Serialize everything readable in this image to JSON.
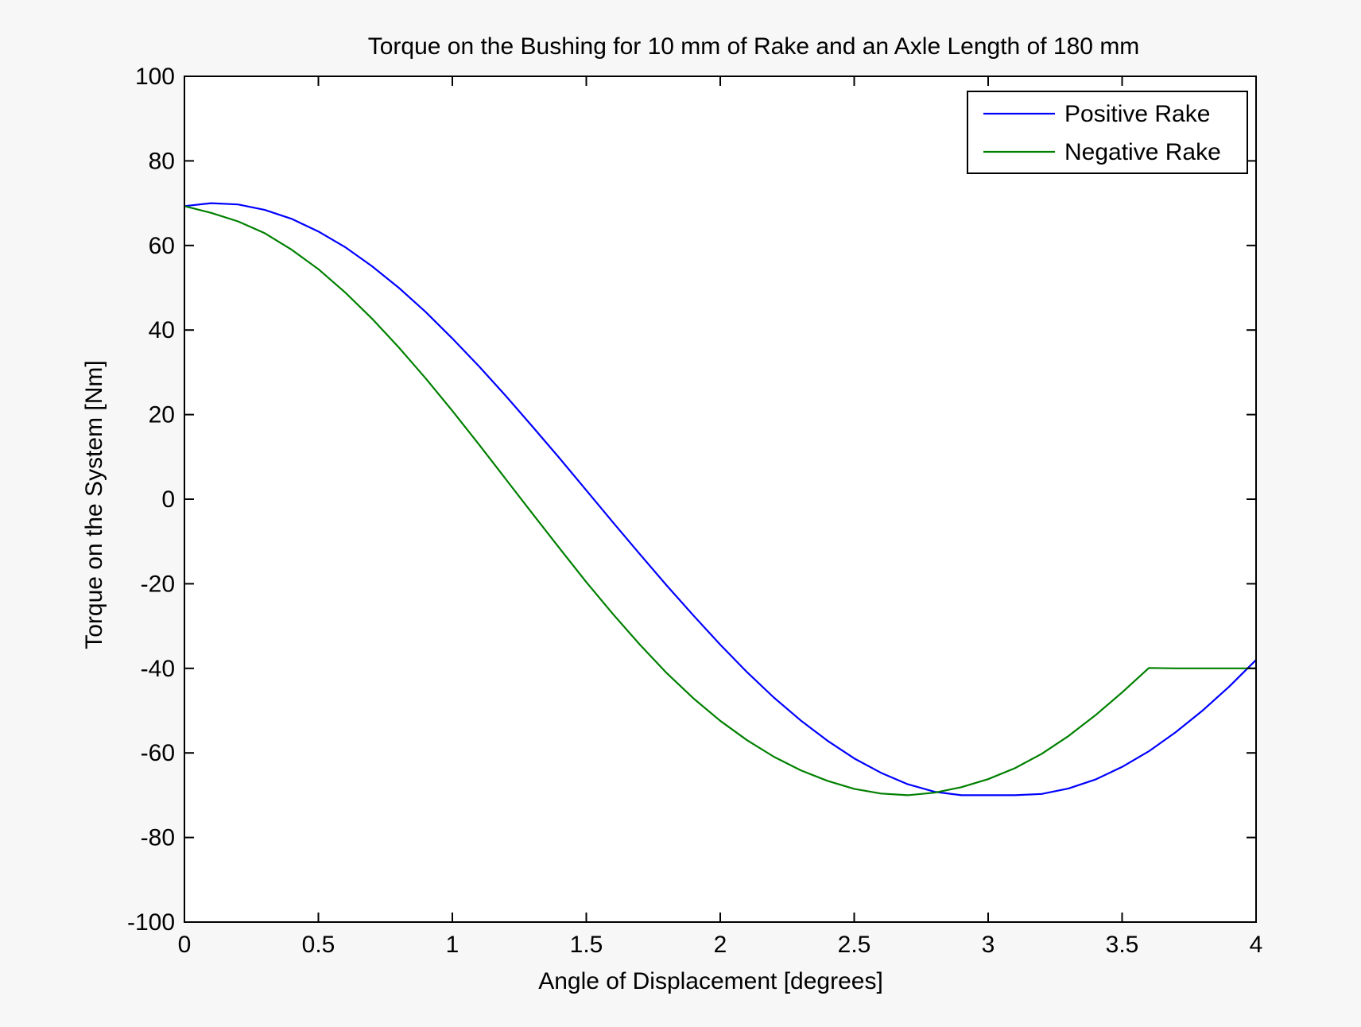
{
  "chart_data": {
    "type": "line",
    "title": "Torque on the Bushing for 10 mm of Rake and an Axle Length of 180 mm",
    "xlabel": "Angle of Displacement [degrees]",
    "ylabel": "Torque on the System [Nm]",
    "xlim": [
      0,
      4
    ],
    "ylim": [
      -100,
      100
    ],
    "xticks": [
      0,
      0.5,
      1,
      1.5,
      2,
      2.5,
      3,
      3.5,
      4
    ],
    "yticks": [
      -100,
      -80,
      -60,
      -40,
      -20,
      0,
      20,
      40,
      60,
      80,
      100
    ],
    "xtick_labels": [
      "0",
      "0.5",
      "1",
      "1.5",
      "2",
      "2.5",
      "3",
      "3.5",
      "4"
    ],
    "ytick_labels": [
      "-100",
      "-80",
      "-60",
      "-40",
      "-20",
      "0",
      "20",
      "40",
      "60",
      "80",
      "100"
    ],
    "grid": false,
    "legend_position": "top-right",
    "series": [
      {
        "name": "Positive Rake",
        "color": "#0000ff",
        "x": [
          0,
          0.1,
          0.2,
          0.3,
          0.4,
          0.5,
          0.6,
          0.7,
          0.8,
          0.9,
          1.0,
          1.1,
          1.2,
          1.3,
          1.4,
          1.5,
          1.6,
          1.7,
          1.8,
          1.9,
          2.0,
          2.1,
          2.2,
          2.3,
          2.4,
          2.5,
          2.6,
          2.7,
          2.8,
          2.9,
          3.0,
          3.1,
          3.2,
          3.3,
          3.4,
          3.5,
          3.6,
          3.7,
          3.8,
          3.9,
          4.0
        ],
        "y": [
          69.3,
          70.0,
          69.7,
          68.4,
          66.3,
          63.3,
          59.6,
          55.1,
          50.0,
          44.3,
          38.0,
          31.4,
          24.4,
          17.1,
          9.7,
          2.1,
          -5.5,
          -13.0,
          -20.4,
          -27.5,
          -34.4,
          -40.9,
          -46.9,
          -52.3,
          -57.1,
          -61.3,
          -64.7,
          -67.4,
          -69.2,
          -70.0,
          -70.0,
          -70.0,
          -69.7,
          -68.4,
          -66.3,
          -63.3,
          -59.6,
          -55.1,
          -50.0,
          -44.3,
          -38.0
        ]
      },
      {
        "name": "Negative Rake",
        "color": "#008000",
        "x": [
          0,
          0.1,
          0.2,
          0.3,
          0.4,
          0.5,
          0.6,
          0.7,
          0.8,
          0.9,
          1.0,
          1.1,
          1.2,
          1.3,
          1.4,
          1.5,
          1.6,
          1.7,
          1.8,
          1.9,
          2.0,
          2.1,
          2.2,
          2.3,
          2.4,
          2.5,
          2.6,
          2.7,
          2.8,
          2.9,
          3.0,
          3.1,
          3.2,
          3.3,
          3.4,
          3.5,
          3.6,
          3.7,
          3.8,
          3.9,
          4.0
        ],
        "y": [
          69.3,
          67.7,
          65.7,
          62.9,
          59.0,
          54.4,
          48.9,
          42.7,
          35.9,
          28.6,
          20.9,
          12.9,
          4.7,
          -3.5,
          -11.6,
          -19.6,
          -27.2,
          -34.4,
          -41.1,
          -47.1,
          -52.4,
          -57.0,
          -60.9,
          -64.1,
          -66.6,
          -68.5,
          -69.6,
          -70.0,
          -69.4,
          -68.1,
          -66.2,
          -63.6,
          -60.2,
          -56.0,
          -51.1,
          -45.7,
          -39.9,
          -40.0,
          -40.0,
          -40.0,
          -40.0
        ]
      }
    ]
  }
}
